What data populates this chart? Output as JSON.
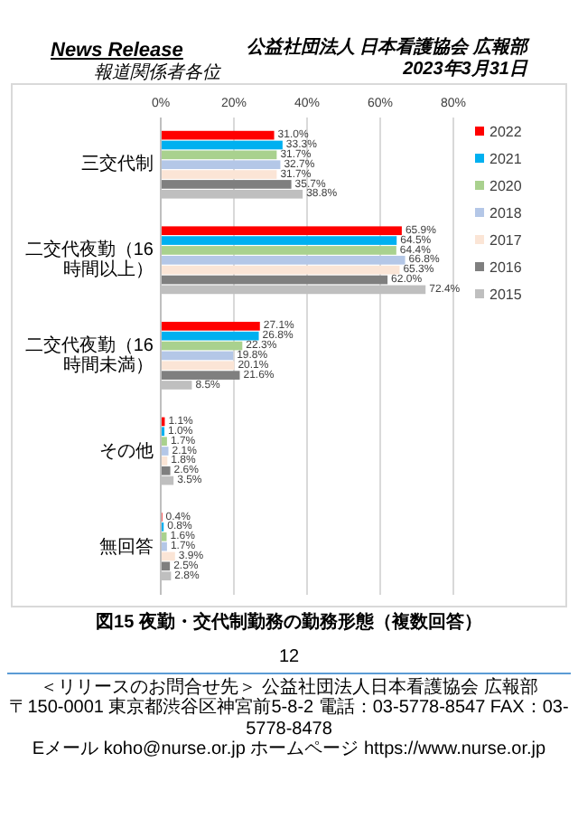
{
  "chart_data": {
    "type": "bar",
    "orientation": "horizontal",
    "title": "図15 夜勤・交代制勤務の勤務形態（複数回答）",
    "categories": [
      "三交代制",
      "二交代夜勤（16時間以上）",
      "二交代夜勤（16時間未満）",
      "その他",
      "無回答"
    ],
    "series": [
      {
        "name": "2022",
        "color": "#ff0000",
        "values": [
          31.0,
          65.9,
          27.1,
          1.1,
          0.4
        ],
        "value_labels": [
          "31.0%",
          "65.9%",
          "27.1%",
          "1.1%",
          "0.4%"
        ]
      },
      {
        "name": "2021",
        "color": "#00b0f0",
        "values": [
          33.3,
          64.5,
          26.8,
          1.0,
          0.8
        ],
        "value_labels": [
          "33.3%",
          "64.5%",
          "26.8%",
          "1.0%",
          "0.8%"
        ]
      },
      {
        "name": "2020",
        "color": "#a9d18e",
        "values": [
          31.7,
          64.4,
          22.3,
          1.7,
          1.6
        ],
        "value_labels": [
          "31.7%",
          "64.4%",
          "22.3%",
          "1.7%",
          "1.6%"
        ]
      },
      {
        "name": "2018",
        "color": "#b4c7e7",
        "values": [
          32.7,
          66.8,
          19.8,
          2.1,
          1.7
        ],
        "value_labels": [
          "32.7%",
          "66.8%",
          "19.8%",
          "2.1%",
          "1.7%"
        ]
      },
      {
        "name": "2017",
        "color": "#fbe5d6",
        "values": [
          31.7,
          65.3,
          20.1,
          1.8,
          3.9
        ],
        "value_labels": [
          "31.7%",
          "65.3%",
          "20.1%",
          "1.8%",
          "3.9%"
        ]
      },
      {
        "name": "2016",
        "color": "#7f7f7f",
        "values": [
          35.7,
          62.0,
          21.6,
          2.6,
          2.5
        ],
        "value_labels": [
          "35.7%",
          "62.0%",
          "21.6%",
          "2.6%",
          "2.5%"
        ]
      },
      {
        "name": "2015",
        "color": "#bfbfbf",
        "values": [
          38.8,
          72.4,
          8.5,
          3.5,
          2.8
        ],
        "value_labels": [
          "38.8%",
          "72.4%",
          "8.5%",
          "3.5%",
          "2.8%"
        ]
      }
    ],
    "xlim": [
      0,
      80
    ],
    "xticks": [
      {
        "value": 0,
        "label": "0%"
      },
      {
        "value": 20,
        "label": "20%"
      },
      {
        "value": 40,
        "label": "40%"
      },
      {
        "value": 60,
        "label": "60%"
      },
      {
        "value": 80,
        "label": "80%"
      }
    ],
    "grid": "x",
    "legend": "right",
    "annotations": [
      "News Release",
      "報道関係者各位",
      "公益社団法人 日本看護協会 広報部",
      "2023年3月31日",
      "12",
      "＜リリースのお問合せ先＞ 公益社団法人日本看護協会 広報部",
      "〒150-0001 東京都渋谷区神宮前5-8-2 電話：03-5778-8547 FAX：03-5778-8478",
      "Eメール koho@nurse.or.jp ホームページ https://www.nurse.or.jp"
    ]
  }
}
